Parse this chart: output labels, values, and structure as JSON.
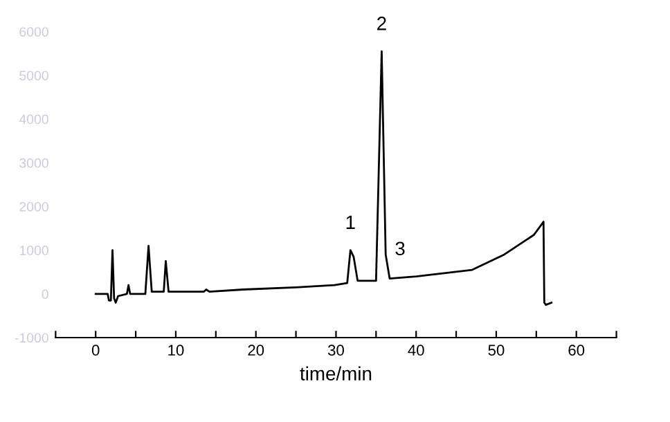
{
  "chart_data": {
    "type": "line",
    "xlabel": "time/min",
    "color": "#000000",
    "x": [
      0,
      1.5,
      1.65,
      1.9,
      2.1,
      2.3,
      2.5,
      2.8,
      3.9,
      4.1,
      4.3,
      6.2,
      6.6,
      7.0,
      8.5,
      8.75,
      9.1,
      13.5,
      13.8,
      14.2,
      18.4,
      25,
      29.8,
      31.4,
      31.8,
      32.2,
      32.7,
      35.0,
      35.7,
      36.2,
      36.7,
      40,
      47,
      51,
      54.7,
      55.9,
      56.0,
      56.2,
      56.9
    ],
    "values": [
      0,
      0,
      -150,
      -150,
      1000,
      -100,
      -200,
      -50,
      0,
      200,
      0,
      0,
      1100,
      50,
      50,
      750,
      50,
      50,
      100,
      50,
      100,
      150,
      200,
      250,
      1000,
      850,
      300,
      300,
      5550,
      900,
      350,
      400,
      550,
      900,
      1350,
      1650,
      -200,
      -250,
      -200
    ],
    "annotations": [
      {
        "text": "1",
        "x": 31.8,
        "y": 1000
      },
      {
        "text": "2",
        "x": 35.7,
        "y": 5550
      },
      {
        "text": "3",
        "x": 38,
        "y": 400
      }
    ],
    "xlim": [
      -5,
      65
    ],
    "ylim": [
      -1000,
      6000
    ],
    "xticks": [
      {
        "value": -5,
        "label": null
      },
      0,
      {
        "value": 5,
        "label": null
      },
      10,
      {
        "value": 15,
        "label": null
      },
      20,
      {
        "value": 25,
        "label": null
      },
      30,
      {
        "value": 35,
        "label": null
      },
      40,
      {
        "value": 45,
        "label": null
      },
      50,
      {
        "value": 55,
        "label": null
      },
      60,
      {
        "value": 65,
        "label": null
      }
    ],
    "yticks": [
      -1000,
      0,
      1000,
      2000,
      3000,
      4000,
      5000,
      6000
    ],
    "grid": false,
    "legend": false
  }
}
